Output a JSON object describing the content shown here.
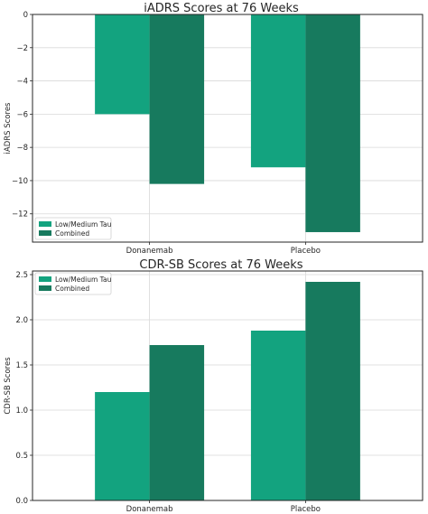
{
  "chart_data": [
    {
      "type": "bar",
      "title": "iADRS Scores at 76 Weeks",
      "xlabel": "",
      "ylabel": "iADRS Scores",
      "categories": [
        "Donanemab",
        "Placebo"
      ],
      "series": [
        {
          "name": "Low/Medium Tau",
          "values": [
            -6.0,
            -9.2
          ],
          "color": "#13a37f"
        },
        {
          "name": "Combined",
          "values": [
            -10.2,
            -13.1
          ],
          "color": "#177a5e"
        }
      ],
      "ylim": [
        -13.7,
        0
      ],
      "yticks": [
        0,
        -2,
        -4,
        -6,
        -8,
        -10,
        -12
      ],
      "ytick_labels": [
        "0",
        "−2",
        "−4",
        "−6",
        "−8",
        "−10",
        "−12"
      ],
      "grid": true,
      "legend": "lower-left"
    },
    {
      "type": "bar",
      "title": "CDR-SB Scores at 76 Weeks",
      "xlabel": "",
      "ylabel": "CDR-SB Scores",
      "categories": [
        "Donanemab",
        "Placebo"
      ],
      "series": [
        {
          "name": "Low/Medium Tau",
          "values": [
            1.2,
            1.88
          ],
          "color": "#13a37f"
        },
        {
          "name": "Combined",
          "values": [
            1.72,
            2.42
          ],
          "color": "#177a5e"
        }
      ],
      "ylim": [
        0,
        2.54
      ],
      "yticks": [
        0.0,
        0.5,
        1.0,
        1.5,
        2.0,
        2.5
      ],
      "ytick_labels": [
        "0.0",
        "0.5",
        "1.0",
        "1.5",
        "2.0",
        "2.5"
      ],
      "grid": true,
      "legend": "upper-left"
    }
  ]
}
